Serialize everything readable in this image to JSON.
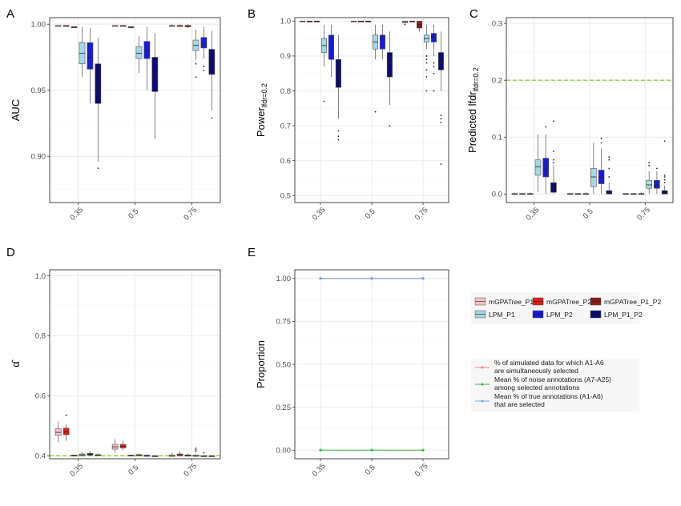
{
  "panels": [
    {
      "label": "A",
      "ylabel": "AUC",
      "ylabel_main": "AUC",
      "ylabel_sub": ""
    },
    {
      "label": "B",
      "ylabel": "Power_lfdr=0.2",
      "ylabel_main": "Power",
      "ylabel_sub": "lfdr=0.2"
    },
    {
      "label": "C",
      "ylabel": "Predicted lfdr_lfdr=0.2",
      "ylabel_main": "Predicted lfdr",
      "ylabel_sub": "lfdr=0.2"
    },
    {
      "label": "D",
      "ylabel": "α̂",
      "ylabel_main": "α̂",
      "ylabel_sub": ""
    },
    {
      "label": "E",
      "ylabel": "Proportion",
      "ylabel_main": "Proportion",
      "ylabel_sub": ""
    }
  ],
  "legend_methods": [
    {
      "name": "mGPATree_P1",
      "color": "#f4c2c7"
    },
    {
      "name": "mGPATree_P2",
      "color": "#e31a1c"
    },
    {
      "name": "mGPATree_P1_P2",
      "color": "#8b1a1a"
    },
    {
      "name": "LPM_P1",
      "color": "#a6d8e4"
    },
    {
      "name": "LPM_P2",
      "color": "#1a1adb"
    },
    {
      "name": "LPM_P1_P2",
      "color": "#0b0b70"
    }
  ],
  "legend_lines": [
    {
      "text1": "% of simulated data for which A1-A6",
      "text2": "are simultaneously selected",
      "color": "#f08080"
    },
    {
      "text1": "Mean % of noise annotations (A7-A25)",
      "text2": "among selected annotations",
      "color": "#3cb043"
    },
    {
      "text1": "Mean % of true annotations (A1-A6)",
      "text2": "that are selected",
      "color": "#6ea8e0"
    }
  ],
  "chart_data": [
    {
      "panel": "A",
      "type": "box",
      "categories": [
        "0.35",
        "0.5",
        "0.75"
      ],
      "ylabel": "AUC",
      "ylim": [
        0.865,
        1.005
      ],
      "yticks": [
        0.9,
        0.95,
        1.0
      ],
      "ytick_labels": [
        "0.90",
        "0.95",
        "1.00"
      ],
      "series": [
        {
          "name": "mGPATree_P1",
          "boxes": [
            [
              0.999,
              0.999,
              0.999,
              0.999,
              0.999
            ],
            [
              0.999,
              0.999,
              0.999,
              0.999,
              0.999
            ],
            [
              0.998,
              0.999,
              0.999,
              0.999,
              1.0
            ]
          ]
        },
        {
          "name": "mGPATree_P2",
          "boxes": [
            [
              0.999,
              0.999,
              0.999,
              0.999,
              0.999
            ],
            [
              0.999,
              0.999,
              0.999,
              0.999,
              0.999
            ],
            [
              0.998,
              0.999,
              0.999,
              0.999,
              1.0
            ]
          ]
        },
        {
          "name": "mGPATree_P1_P2",
          "boxes": [
            [
              0.998,
              0.998,
              0.998,
              0.998,
              0.998
            ],
            [
              0.998,
              0.998,
              0.998,
              0.998,
              0.998
            ],
            [
              0.997,
              0.998,
              0.999,
              0.999,
              1.0
            ]
          ]
        },
        {
          "name": "LPM_P1",
          "boxes": [
            [
              0.96,
              0.97,
              0.978,
              0.986,
              0.998
            ],
            [
              0.963,
              0.974,
              0.978,
              0.983,
              0.991
            ],
            [
              0.973,
              0.98,
              0.984,
              0.988,
              0.996
            ]
          ],
          "outliers": [
            [],
            [],
            [
              0.96,
              0.97
            ]
          ]
        },
        {
          "name": "LPM_P2",
          "boxes": [
            [
              0.94,
              0.966,
              0.975,
              0.986,
              0.997
            ],
            [
              0.95,
              0.974,
              0.98,
              0.987,
              0.998
            ],
            [
              0.974,
              0.982,
              0.985,
              0.99,
              0.998
            ]
          ],
          "outliers": [
            [],
            [],
            [
              0.965,
              0.968
            ]
          ]
        },
        {
          "name": "LPM_P1_P2",
          "boxes": [
            [
              0.896,
              0.94,
              0.953,
              0.97,
              0.99
            ],
            [
              0.913,
              0.949,
              0.962,
              0.975,
              0.993
            ],
            [
              0.935,
              0.962,
              0.97,
              0.981,
              0.995
            ]
          ],
          "outliers": [
            [
              0.891
            ],
            [],
            [
              0.929
            ]
          ]
        }
      ]
    },
    {
      "panel": "B",
      "type": "box",
      "categories": [
        "0.35",
        "0.5",
        "0.75"
      ],
      "ylabel": "Power_lfdr=0.2",
      "ylim": [
        0.48,
        1.01
      ],
      "yticks": [
        0.5,
        0.6,
        0.7,
        0.8,
        0.9,
        1.0
      ],
      "ytick_labels": [
        "0.5",
        "0.6",
        "0.7",
        "0.8",
        "0.9",
        "1.0"
      ],
      "series": [
        {
          "name": "mGPATree_P1",
          "boxes": [
            [
              1.0,
              1.0,
              1.0,
              1.0,
              1.0
            ],
            [
              0.997,
              1.0,
              1.0,
              1.0,
              1.0
            ],
            [
              0.99,
              0.995,
              0.998,
              1.0,
              1.0
            ]
          ],
          "outliers": [
            [],
            [],
            [
              0.99
            ]
          ]
        },
        {
          "name": "mGPATree_P2",
          "boxes": [
            [
              1.0,
              1.0,
              1.0,
              1.0,
              1.0
            ],
            [
              1.0,
              1.0,
              1.0,
              1.0,
              1.0
            ],
            [
              1.0,
              1.0,
              1.0,
              1.0,
              1.0
            ]
          ]
        },
        {
          "name": "mGPATree_P1_P2",
          "boxes": [
            [
              1.0,
              1.0,
              1.0,
              1.0,
              1.0
            ],
            [
              1.0,
              1.0,
              1.0,
              1.0,
              1.0
            ],
            [
              0.97,
              0.98,
              0.99,
              1.0,
              1.0
            ]
          ]
        },
        {
          "name": "LPM_P1",
          "boxes": [
            [
              0.87,
              0.91,
              0.93,
              0.95,
              0.99
            ],
            [
              0.89,
              0.92,
              0.94,
              0.96,
              0.99
            ],
            [
              0.92,
              0.94,
              0.95,
              0.96,
              0.99
            ]
          ],
          "outliers": [
            [
              0.77
            ],
            [
              0.74
            ],
            [
              0.8,
              0.84,
              0.86,
              0.88,
              0.89,
              0.9
            ]
          ]
        },
        {
          "name": "LPM_P2",
          "boxes": [
            [
              0.84,
              0.89,
              0.95,
              0.96,
              0.99
            ],
            [
              0.89,
              0.92,
              0.95,
              0.96,
              0.99
            ],
            [
              0.9,
              0.94,
              0.955,
              0.965,
              0.99
            ]
          ],
          "outliers": [
            [],
            [],
            [
              0.8,
              0.85,
              0.87,
              0.88
            ]
          ]
        },
        {
          "name": "LPM_P1_P2",
          "boxes": [
            [
              0.72,
              0.81,
              0.85,
              0.89,
              0.96
            ],
            [
              0.76,
              0.84,
              0.88,
              0.91,
              0.97
            ],
            [
              0.8,
              0.86,
              0.88,
              0.91,
              0.97
            ]
          ],
          "outliers": [
            [
              0.66,
              0.67,
              0.685
            ],
            [
              0.7
            ],
            [
              0.59,
              0.71,
              0.72,
              0.73
            ]
          ]
        }
      ]
    },
    {
      "panel": "C",
      "type": "box",
      "categories": [
        "0.35",
        "0.5",
        "0.75"
      ],
      "ylabel": "Predicted lfdr_lfdr=0.2",
      "ylim": [
        -0.015,
        0.31
      ],
      "yticks": [
        0.0,
        0.1,
        0.2,
        0.3
      ],
      "ytick_labels": [
        "0.0",
        "0.1",
        "0.2",
        "0.3"
      ],
      "reference_line": {
        "y": 0.2,
        "color": "#7ccd00"
      },
      "series": [
        {
          "name": "mGPATree_P1",
          "boxes": [
            [
              0,
              0,
              0,
              0.001,
              0.002
            ],
            [
              0,
              0,
              0,
              0.001,
              0.002
            ],
            [
              0,
              0,
              0,
              0.001,
              0.002
            ]
          ]
        },
        {
          "name": "mGPATree_P2",
          "boxes": [
            [
              0,
              0,
              0,
              0.001,
              0.002
            ],
            [
              0,
              0,
              0,
              0.001,
              0.002
            ],
            [
              0,
              0,
              0,
              0.001,
              0.002
            ]
          ]
        },
        {
          "name": "mGPATree_P1_P2",
          "boxes": [
            [
              0,
              0,
              0,
              0.001,
              0.003
            ],
            [
              0,
              0,
              0,
              0.001,
              0.003
            ],
            [
              0,
              0,
              0,
              0.001,
              0.003
            ]
          ]
        },
        {
          "name": "LPM_P1",
          "boxes": [
            [
              0.003,
              0.033,
              0.048,
              0.06,
              0.105
            ],
            [
              0.0,
              0.013,
              0.03,
              0.045,
              0.09
            ],
            [
              0.0,
              0.01,
              0.016,
              0.024,
              0.04
            ]
          ],
          "outliers": [
            [],
            [],
            [
              0.05,
              0.055
            ]
          ]
        },
        {
          "name": "LPM_P2",
          "boxes": [
            [
              0.0,
              0.03,
              0.043,
              0.063,
              0.105
            ],
            [
              0.0,
              0.018,
              0.03,
              0.042,
              0.08
            ],
            [
              0.0,
              0.01,
              0.016,
              0.024,
              0.04
            ]
          ],
          "outliers": [
            [
              0.118
            ],
            [
              0.09,
              0.098
            ],
            [
              0.045
            ]
          ]
        },
        {
          "name": "LPM_P1_P2",
          "boxes": [
            [
              0.0,
              0.003,
              0.01,
              0.02,
              0.05
            ],
            [
              0.0,
              0.0,
              0.002,
              0.006,
              0.02
            ],
            [
              0.0,
              0.0,
              0.002,
              0.006,
              0.015
            ]
          ],
          "outliers": [
            [
              0.055,
              0.06,
              0.075,
              0.128
            ],
            [
              0.03,
              0.045,
              0.06,
              0.065
            ],
            [
              0.02,
              0.025,
              0.03,
              0.033,
              0.093
            ]
          ]
        }
      ]
    },
    {
      "panel": "D",
      "type": "box",
      "categories": [
        "0.35",
        "0.5",
        "0.75"
      ],
      "ylabel": "α̂",
      "ylim": [
        0.39,
        1.02
      ],
      "yticks": [
        0.4,
        0.6,
        0.8,
        1.0
      ],
      "ytick_labels": [
        "0.4",
        "0.6",
        "0.8",
        "1.0"
      ],
      "reference_line": {
        "y": 0.4,
        "color": "#7ccd00"
      },
      "series": [
        {
          "name": "mGPATree_P1",
          "boxes": [
            [
              0.445,
              0.468,
              0.478,
              0.49,
              0.515
            ],
            [
              0.41,
              0.422,
              0.43,
              0.438,
              0.455
            ],
            [
              0.396,
              0.398,
              0.4,
              0.403,
              0.41
            ]
          ]
        },
        {
          "name": "mGPATree_P2",
          "boxes": [
            [
              0.45,
              0.47,
              0.48,
              0.492,
              0.505
            ],
            [
              0.418,
              0.426,
              0.432,
              0.438,
              0.45
            ],
            [
              0.397,
              0.4,
              0.403,
              0.406,
              0.415
            ]
          ],
          "outliers": [
            [
              0.535
            ],
            [],
            []
          ]
        },
        {
          "name": "mGPATree_P1_P2",
          "boxes": [
            [
              0.398,
              0.4,
              0.401,
              0.402,
              0.404
            ],
            [
              0.398,
              0.4,
              0.401,
              0.402,
              0.404
            ],
            [
              0.397,
              0.399,
              0.401,
              0.403,
              0.407
            ]
          ]
        },
        {
          "name": "LPM_P1",
          "boxes": [
            [
              0.398,
              0.4,
              0.403,
              0.406,
              0.412
            ],
            [
              0.398,
              0.4,
              0.402,
              0.404,
              0.408
            ],
            [
              0.396,
              0.398,
              0.4,
              0.402,
              0.406
            ]
          ],
          "outliers": [
            [],
            [],
            [
              0.415,
              0.42,
              0.425
            ]
          ]
        },
        {
          "name": "LPM_P2",
          "boxes": [
            [
              0.4,
              0.402,
              0.405,
              0.408,
              0.415
            ],
            [
              0.397,
              0.398,
              0.4,
              0.402,
              0.405
            ],
            [
              0.397,
              0.398,
              0.399,
              0.4,
              0.402
            ]
          ],
          "outliers": [
            [],
            [],
            [
              0.41
            ]
          ]
        },
        {
          "name": "LPM_P1_P2",
          "boxes": [
            [
              0.4,
              0.401,
              0.402,
              0.404,
              0.408
            ],
            [
              0.397,
              0.398,
              0.399,
              0.4,
              0.402
            ],
            [
              0.397,
              0.398,
              0.399,
              0.4,
              0.402
            ]
          ]
        }
      ]
    },
    {
      "panel": "E",
      "type": "line",
      "x": [
        "0.35",
        "0.5",
        "0.75"
      ],
      "ylabel": "Proportion",
      "ylim": [
        -0.05,
        1.05
      ],
      "yticks": [
        0.0,
        0.25,
        0.5,
        0.75,
        1.0
      ],
      "ytick_labels": [
        "0.00",
        "0.25",
        "0.50",
        "0.75",
        "1.00"
      ],
      "series": [
        {
          "name": "% of simulated data for which A1-A6 are simultaneously selected",
          "values": [
            1.0,
            1.0,
            1.0
          ]
        },
        {
          "name": "Mean % of noise annotations (A7-A25) among selected annotations",
          "values": [
            0.0,
            0.0,
            0.0
          ]
        },
        {
          "name": "Mean % of true annotations (A1-A6) that are selected",
          "values": [
            1.0,
            1.0,
            1.0
          ]
        }
      ]
    }
  ]
}
